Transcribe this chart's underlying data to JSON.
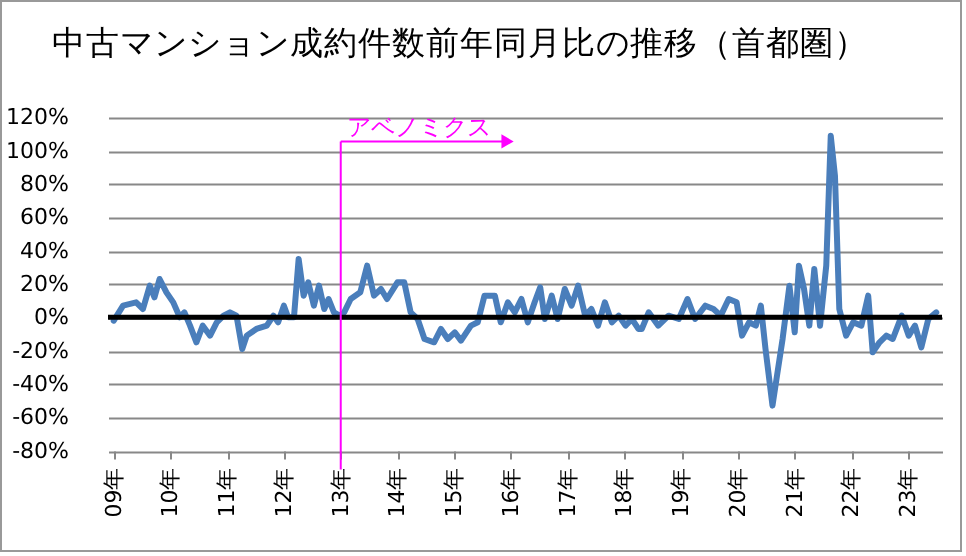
{
  "chart_data": {
    "type": "line",
    "title": "中古マンション成約件数前年同月比の推移（首都圏）",
    "x": [
      "2009-01-01",
      "2009-03-02",
      "2009-05-25",
      "2009-07-08",
      "2009-08-21",
      "2009-09-20",
      "2009-10-23",
      "2009-12-06",
      "2010-01-19",
      "2010-03-02",
      "2010-04-01",
      "2010-05-07",
      "2010-06-17",
      "2010-07-28",
      "2010-09-13",
      "2010-10-26",
      "2010-12-09",
      "2011-01-19",
      "2011-03-02",
      "2011-04-08",
      "2011-05-07",
      "2011-07-08",
      "2011-09-13",
      "2011-10-26",
      "2011-11-25",
      "2012-01-01",
      "2012-01-28",
      "2012-03-06",
      "2012-04-05",
      "2012-05-07",
      "2012-06-06",
      "2012-07-12",
      "2012-08-14",
      "2012-09-17",
      "2012-10-15",
      "2012-11-18",
      "2012-12-24",
      "2013-01-23",
      "2013-03-06",
      "2013-05-07",
      "2013-06-20",
      "2013-08-03",
      "2013-09-17",
      "2013-10-26",
      "2014-01-01",
      "2014-02-14",
      "2014-03-27",
      "2014-05-11",
      "2014-06-24",
      "2014-08-25",
      "2014-10-08",
      "2014-11-21",
      "2015-01-05",
      "2015-02-14",
      "2015-04-19",
      "2015-06-02",
      "2015-07-15",
      "2015-09-20",
      "2015-10-28",
      "2015-12-13",
      "2016-01-26",
      "2016-03-09",
      "2016-04-19",
      "2016-06-02",
      "2016-07-08",
      "2016-08-07",
      "2016-09-20",
      "2016-10-28",
      "2016-12-13",
      "2017-01-26",
      "2017-03-09",
      "2017-04-23",
      "2017-06-02",
      "2017-07-15",
      "2017-08-28",
      "2017-10-12",
      "2017-11-25",
      "2018-01-08",
      "2018-02-18",
      "2018-04-01",
      "2018-04-23",
      "2018-06-06",
      "2018-08-07",
      "2018-10-12",
      "2018-12-17",
      "2019-02-11",
      "2019-04-01",
      "2019-06-06",
      "2019-07-28",
      "2019-09-13",
      "2019-11-03",
      "2019-12-24",
      "2020-01-28",
      "2020-03-13",
      "2020-04-26",
      "2020-05-28",
      "2020-06-27",
      "2020-08-11",
      "2020-09-09",
      "2020-10-15",
      "2020-11-28",
      "2021-01-01",
      "2021-01-28",
      "2021-03-02",
      "2021-04-05",
      "2021-05-07",
      "2021-06-13",
      "2021-07-23",
      "2021-08-21",
      "2021-09-17",
      "2021-10-15",
      "2021-11-28",
      "2022-01-12",
      "2022-03-06",
      "2022-04-19",
      "2022-05-18",
      "2022-07-01",
      "2022-08-14",
      "2022-09-24",
      "2022-11-21",
      "2023-01-05",
      "2023-02-14",
      "2023-03-27",
      "2023-05-11",
      "2023-07-01"
    ],
    "series": [
      {
        "color": "#4a7ebb",
        "values": [
          -2,
          7,
          9,
          5,
          19,
          12,
          23,
          15,
          9,
          0,
          3,
          -5,
          -15,
          -5,
          -11,
          -3,
          1,
          3,
          1,
          -19,
          -11,
          -7,
          -5,
          1,
          -3,
          7,
          0,
          0,
          35,
          13,
          21,
          7,
          19,
          5,
          11,
          3,
          1,
          3,
          11,
          15,
          31,
          13,
          17,
          11,
          21,
          21,
          3,
          -1,
          -13,
          -15,
          -7,
          -13,
          -9,
          -14,
          -5,
          -3,
          13,
          13,
          -3,
          9,
          3,
          11,
          -3,
          9,
          18,
          -1,
          13,
          -1,
          17,
          7,
          19,
          1,
          5,
          -5,
          9,
          -3,
          1,
          -5,
          -1,
          -7,
          -7,
          3,
          -5,
          1,
          -1,
          11,
          -1,
          7,
          5,
          1,
          11,
          9,
          -11,
          -3,
          -5,
          7,
          -19,
          -53,
          -35,
          -13,
          19,
          -9,
          31,
          17,
          -5,
          29,
          -5,
          31,
          109,
          85,
          5,
          -11,
          -3,
          -5,
          13,
          -21,
          -15,
          -11,
          -13,
          1,
          -11,
          -5,
          -18,
          -1,
          3
        ]
      }
    ],
    "xlim": [
      "2008-11-25",
      "2023-08-07"
    ],
    "xticks": [
      {
        "value": "2009-01-01",
        "label": "09年"
      },
      {
        "value": "2010-01-01",
        "label": "10年"
      },
      {
        "value": "2011-01-01",
        "label": "11年"
      },
      {
        "value": "2012-01-01",
        "label": "12年"
      },
      {
        "value": "2013-01-01",
        "label": "13年"
      },
      {
        "value": "2014-01-01",
        "label": "14年"
      },
      {
        "value": "2015-01-01",
        "label": "15年"
      },
      {
        "value": "2016-01-01",
        "label": "16年"
      },
      {
        "value": "2017-01-01",
        "label": "17年"
      },
      {
        "value": "2018-01-01",
        "label": "18年"
      },
      {
        "value": "2019-01-01",
        "label": "19年"
      },
      {
        "value": "2020-01-01",
        "label": "20年"
      },
      {
        "value": "2021-01-01",
        "label": "21年"
      },
      {
        "value": "2022-01-01",
        "label": "22年"
      },
      {
        "value": "2023-01-01",
        "label": "23年"
      }
    ],
    "ylim": [
      -80,
      120
    ],
    "yticks": [
      {
        "value": -80,
        "label": "-80%"
      },
      {
        "value": -60,
        "label": "-60%"
      },
      {
        "value": -40,
        "label": "-40%"
      },
      {
        "value": -20,
        "label": "-20%"
      },
      {
        "value": 0,
        "label": "0%"
      },
      {
        "value": 20,
        "label": "20%"
      },
      {
        "value": 40,
        "label": "40%"
      },
      {
        "value": 60,
        "label": "60%"
      },
      {
        "value": 80,
        "label": "80%"
      },
      {
        "value": 100,
        "label": "100%"
      },
      {
        "value": 120,
        "label": "120%"
      }
    ],
    "grid": "y",
    "ref_lines": [
      {
        "axis": "y",
        "value": 0,
        "color": "#000000"
      },
      {
        "axis": "x",
        "value": "2013-01-01",
        "label": "アベノミクス",
        "color": "#ff00ff"
      }
    ]
  }
}
